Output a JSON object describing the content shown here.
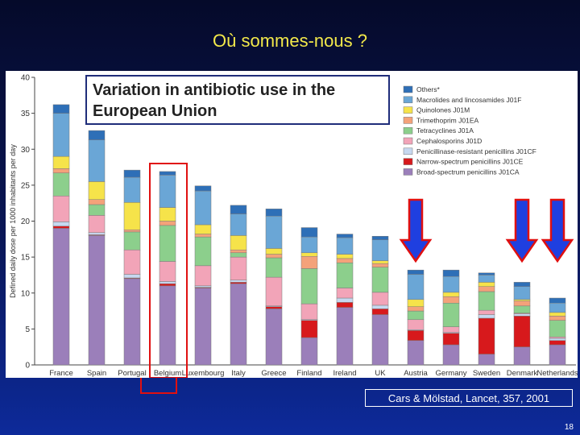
{
  "slide": {
    "title": "Où sommes-nous ?",
    "citation": "Cars & Mölstad, Lancet, 357, 2001",
    "page_number": "18"
  },
  "chart_data": {
    "type": "bar",
    "stacked": true,
    "title_line1": "Variation in antibiotic use in the",
    "title_line2": "European Union",
    "ylabel": "Defined daily dose per 1000 inhabitants per day",
    "ylim": [
      0,
      40
    ],
    "yticks": [
      0,
      5,
      10,
      15,
      20,
      25,
      30,
      35,
      40
    ],
    "grid": false,
    "legend_position": "top-right",
    "categories": [
      "France",
      "Spain",
      "Portugal",
      "Belgium",
      "Luxembourg",
      "Italy",
      "Greece",
      "Finland",
      "Ireland",
      "UK",
      "Austria",
      "Germany",
      "Sweden",
      "Denmark",
      "Netherlands"
    ],
    "highlighted_category": "Belgium",
    "arrow_categories": [
      "Austria",
      "Denmark",
      "Netherlands"
    ],
    "series": [
      {
        "name": "Broad-spectrum penicillins J01CA",
        "color": "#9b7fba",
        "values": [
          19.0,
          18.0,
          12.0,
          11.0,
          10.7,
          11.3,
          7.8,
          3.8,
          8.0,
          7.0,
          3.4,
          2.8,
          1.5,
          2.5,
          2.8
        ]
      },
      {
        "name": "Narrow-spectrum penicillins J01CE",
        "color": "#d7191c",
        "values": [
          0.3,
          0.1,
          0.1,
          0.3,
          0.1,
          0.2,
          0.3,
          2.4,
          0.7,
          0.8,
          1.4,
          1.6,
          5.0,
          4.3,
          0.6
        ]
      },
      {
        "name": "Penicillinase-resistant penicillins J01CF",
        "color": "#c6d8f0",
        "values": [
          0.6,
          0.3,
          0.5,
          0.3,
          0.2,
          0.3,
          0.1,
          0.1,
          0.6,
          0.5,
          0.1,
          0.1,
          0.5,
          0.3,
          0.3
        ]
      },
      {
        "name": "Cephalosporins J01D",
        "color": "#f2a4b8",
        "values": [
          3.6,
          2.4,
          3.4,
          2.8,
          2.8,
          3.2,
          4.0,
          2.2,
          1.4,
          1.8,
          1.4,
          0.8,
          0.6,
          0.1,
          0.2
        ]
      },
      {
        "name": "Tetracyclines J01A",
        "color": "#8ccf8c",
        "values": [
          3.2,
          1.5,
          2.5,
          5.0,
          4.0,
          0.6,
          2.7,
          4.9,
          3.5,
          3.5,
          1.2,
          3.3,
          2.6,
          1.0,
          2.3
        ]
      },
      {
        "name": "Trimethoprim J01EA",
        "color": "#f4a27a",
        "values": [
          0.6,
          0.7,
          0.3,
          0.6,
          0.4,
          0.4,
          0.5,
          1.7,
          0.6,
          0.5,
          0.6,
          0.9,
          0.7,
          0.7,
          0.6
        ]
      },
      {
        "name": "Quinolones J01M",
        "color": "#f6e34a",
        "values": [
          1.7,
          2.5,
          3.8,
          1.9,
          1.3,
          2.0,
          0.8,
          0.5,
          0.6,
          0.4,
          1.0,
          0.6,
          0.6,
          0.2,
          0.5
        ]
      },
      {
        "name": "Macrolides and lincosamides J01F",
        "color": "#6aa6d6",
        "values": [
          6.0,
          5.8,
          3.5,
          4.5,
          4.7,
          3.0,
          4.5,
          2.2,
          2.3,
          2.9,
          3.5,
          2.2,
          1.0,
          1.8,
          1.3
        ]
      },
      {
        "name": "Others*",
        "color": "#2e6fb7",
        "values": [
          1.2,
          1.3,
          1.0,
          0.5,
          0.7,
          1.2,
          1.0,
          1.3,
          0.5,
          0.5,
          0.6,
          0.9,
          0.3,
          0.6,
          0.7
        ]
      }
    ],
    "legend_order": [
      "Others*",
      "Macrolides and lincosamides J01F",
      "Quinolones J01M",
      "Trimethoprim J01EA",
      "Tetracyclines J01A",
      "Cephalosporins J01D",
      "Penicillinase-resistant penicillins J01CF",
      "Narrow-spectrum penicillins J01CE",
      "Broad-spectrum penicillins J01CA"
    ]
  }
}
